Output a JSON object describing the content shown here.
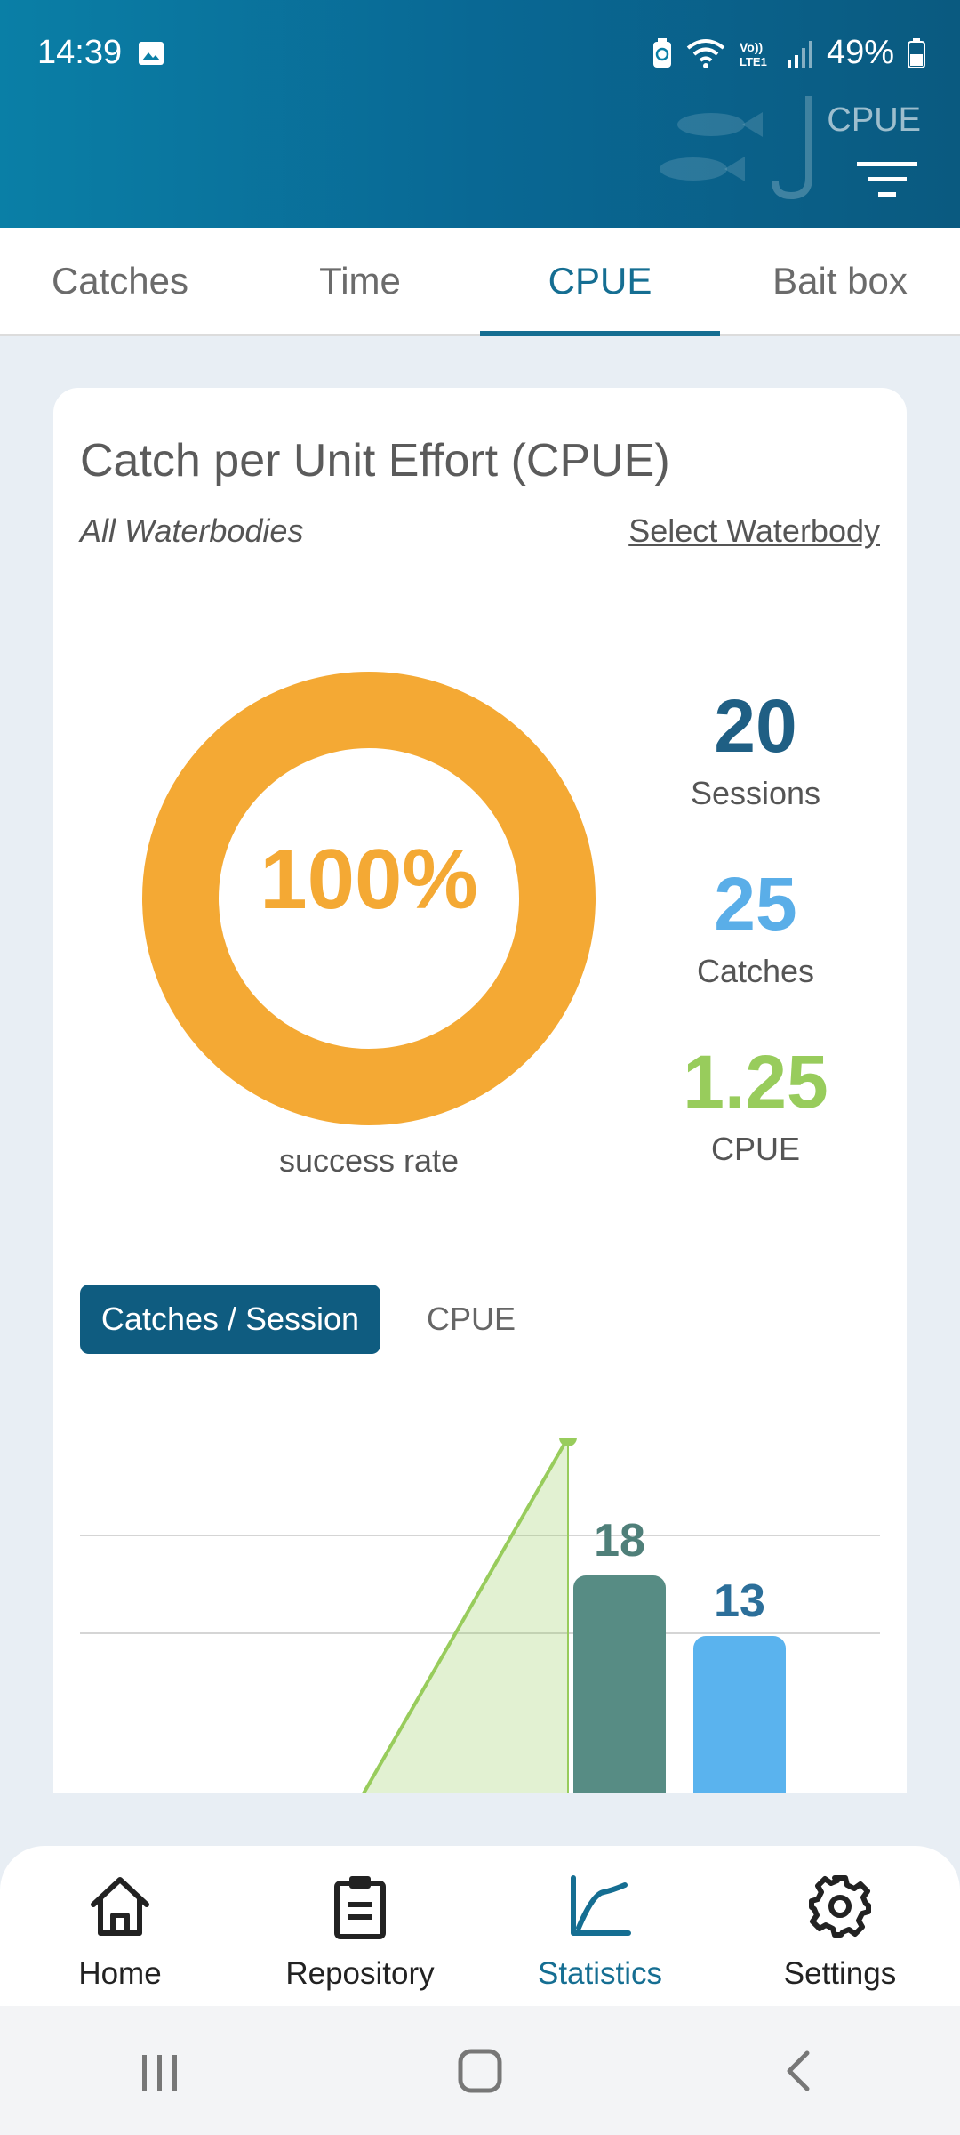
{
  "status": {
    "time": "14:39",
    "battery": "49%",
    "icons": [
      "gallery-icon",
      "battery-saver-icon",
      "wifi-icon",
      "volte-icon",
      "signal-icon",
      "battery-icon"
    ]
  },
  "header": {
    "title": "CPUE",
    "filter_icon": "filter-icon"
  },
  "tabs": [
    {
      "label": "Catches",
      "active": false
    },
    {
      "label": "Time",
      "active": false
    },
    {
      "label": "CPUE",
      "active": true
    },
    {
      "label": "Bait box",
      "active": false
    }
  ],
  "card": {
    "title": "Catch per Unit Effort (CPUE)",
    "scope": "All Waterbodies",
    "select_link": "Select Waterbody",
    "success_rate": "100%",
    "success_rate_value": 100,
    "success_label": "success rate",
    "stats": [
      {
        "value": "20",
        "label": "Sessions",
        "color": "#1f5f84"
      },
      {
        "value": "25",
        "label": "Catches",
        "color": "#5aaee8"
      },
      {
        "value": "1.25",
        "label": "CPUE",
        "color": "#98cc5c"
      }
    ],
    "toggle": {
      "active": "Catches / Session",
      "inactive": "CPUE"
    }
  },
  "chart_data": {
    "type": "bar",
    "bars": [
      {
        "value": 18,
        "color": "#578c84"
      },
      {
        "value": 13,
        "color": "#5ab3ee"
      }
    ],
    "area_line_color": "#98cc5c"
  },
  "bottom_nav": [
    {
      "label": "Home",
      "icon": "home-icon",
      "active": false
    },
    {
      "label": "Repository",
      "icon": "clipboard-icon",
      "active": false
    },
    {
      "label": "Statistics",
      "icon": "chart-line-icon",
      "active": true
    },
    {
      "label": "Settings",
      "icon": "gear-icon",
      "active": false
    }
  ],
  "colors": {
    "accent": "#156e92",
    "donut": "#f4a934"
  }
}
